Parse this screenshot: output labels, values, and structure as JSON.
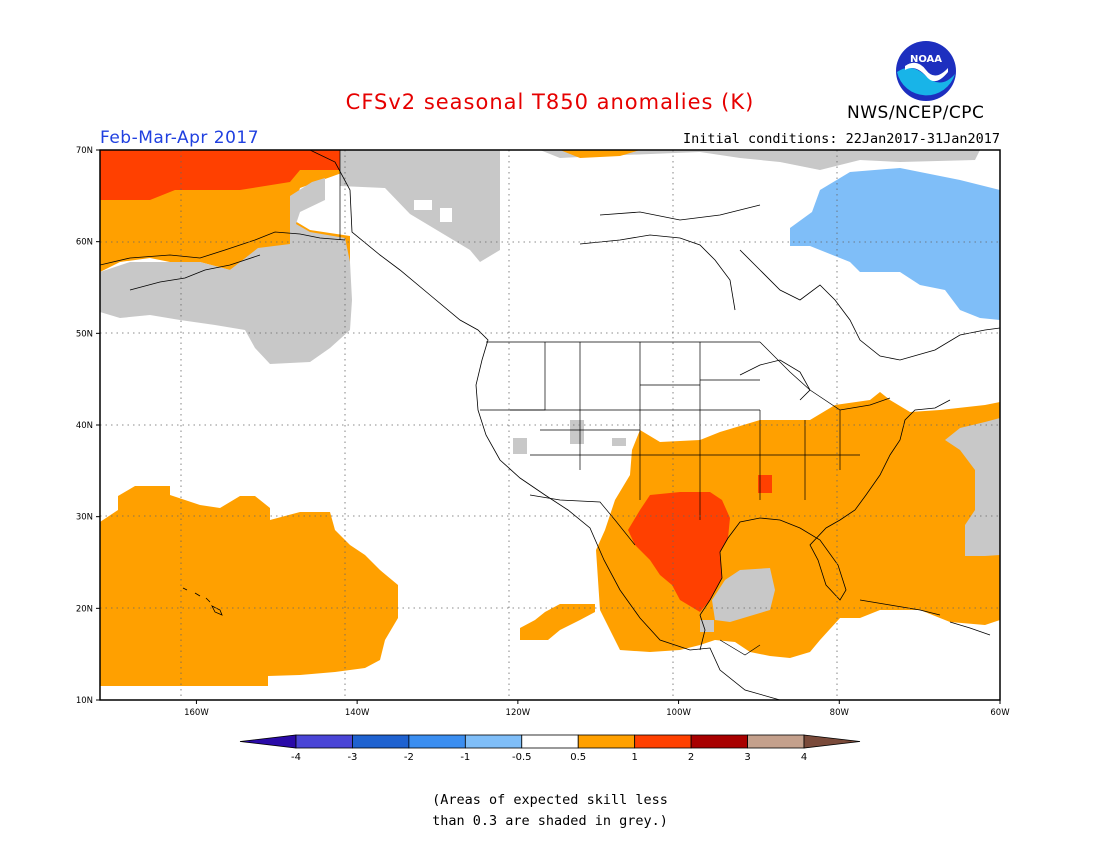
{
  "header": {
    "title": "CFSv2 seasonal T850 anomalies (K)",
    "season": "Feb-Mar-Apr 2017",
    "initial_conditions": "Initial conditions: 22Jan2017-31Jan2017",
    "agency": "NWS/NCEP/CPC",
    "logo_text": "NOAA"
  },
  "map": {
    "region": "North America and eastern North Pacific",
    "lon_range": [
      -172,
      -60
    ],
    "lat_range": [
      10,
      70
    ],
    "lat_labels": [
      "70N",
      "60N",
      "50N",
      "40N",
      "30N",
      "20N",
      "10N"
    ],
    "lon_labels": [
      "160W",
      "140W",
      "120W",
      "100W",
      "80W",
      "60W"
    ],
    "anomaly_regions": [
      {
        "name": "NE Pacific / Alaska warm",
        "category": "0.5 to 1"
      },
      {
        "name": "Northwest Alaska",
        "category": "1 to 2"
      },
      {
        "name": "Subtropical Pacific near Hawaii",
        "category": "0.5 to 1"
      },
      {
        "name": "South-central US and Mexico",
        "category": "0.5 to 1"
      },
      {
        "name": "Texas / northern Mexico core",
        "category": "1 to 2"
      },
      {
        "name": "Eastern US and western Atlantic",
        "category": "0.5 to 1"
      },
      {
        "name": "Labrador / Hudson Bay east",
        "category": "-1 to -0.5"
      }
    ],
    "low_skill_color": "#c8c8c8"
  },
  "colorbar": {
    "labels": [
      "-4",
      "-3",
      "-2",
      "-1",
      "-0.5",
      "0.5",
      "1",
      "2",
      "3",
      "4"
    ],
    "colors": [
      "#2a0aa8",
      "#4a45d6",
      "#1f62d0",
      "#3b8ef0",
      "#7fbef8",
      "#ffffff",
      "#ffa000",
      "#ff4000",
      "#a80000",
      "#c4a08c",
      "#7a4a3a"
    ]
  },
  "note": {
    "line1": "(Areas of expected skill less",
    "line2": "than 0.3 are shaded in grey.)"
  }
}
